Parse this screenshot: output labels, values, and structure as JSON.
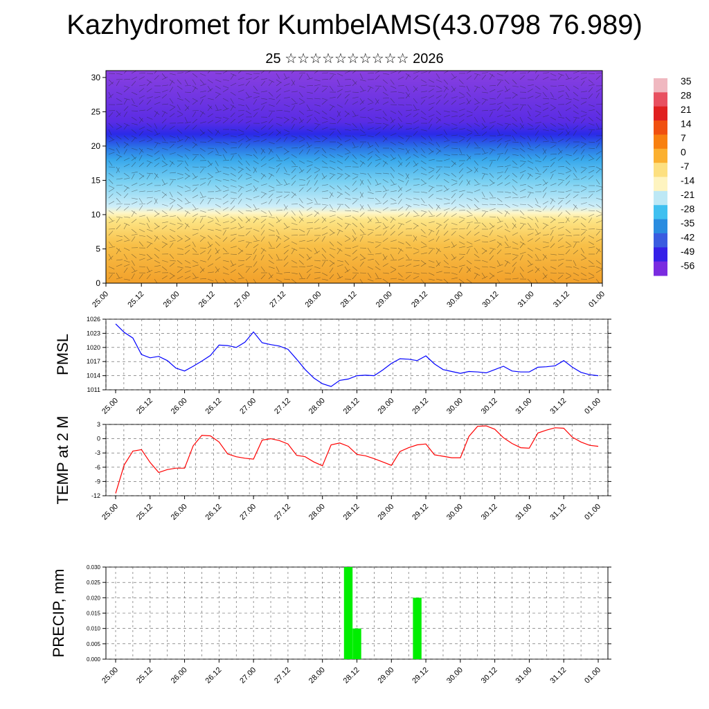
{
  "header": {
    "title": "Kazhydromet for KumbelAMS(43.0798 76.989)",
    "subtitle": "25 ☆☆☆☆☆☆☆☆☆☆ 2026"
  },
  "time_ticks": [
    "25.00",
    "25.12",
    "26.00",
    "26.12",
    "27.00",
    "27.12",
    "28.00",
    "28.12",
    "29.00",
    "29.12",
    "30.00",
    "30.12",
    "31.00",
    "31.12",
    "01.00"
  ],
  "colorbar": {
    "labels": [
      "35",
      "28",
      "21",
      "14",
      "7",
      "0",
      "-7",
      "-14",
      "-21",
      "-28",
      "-35",
      "-42",
      "-49",
      "-56"
    ],
    "colors": [
      "#f0b8c0",
      "#e85060",
      "#e02020",
      "#f05010",
      "#f88010",
      "#fbb030",
      "#fde080",
      "#fef4c0",
      "#bde8f5",
      "#40c0f0",
      "#2a8ce0",
      "#3a5ce0",
      "#3520e8",
      "#7a2be0"
    ]
  },
  "chart_data": [
    {
      "type": "heatmap",
      "title": "",
      "xlabel": "",
      "ylabel": "",
      "x": [
        "25.00",
        "25.12",
        "26.00",
        "26.12",
        "27.00",
        "27.12",
        "28.00",
        "28.12",
        "29.00",
        "29.12",
        "30.00",
        "30.12",
        "31.00",
        "31.12",
        "01.00"
      ],
      "ylim": [
        0,
        31
      ],
      "yticks": [
        "0",
        "5",
        "10",
        "15",
        "20",
        "25",
        "30"
      ],
      "description_bands": [
        {
          "from": 0,
          "to": 10,
          "value_range": [
            0,
            14
          ]
        },
        {
          "from": 10,
          "to": 21,
          "value_range": [
            -42,
            -14
          ]
        },
        {
          "from": 21,
          "to": 31,
          "value_range": [
            -56,
            -49
          ]
        }
      ]
    },
    {
      "type": "line",
      "ylabel": "PMSL",
      "ylim": [
        1011,
        1026
      ],
      "yticks": [
        "1011",
        "1014",
        "1017",
        "1020",
        "1023",
        "1026"
      ],
      "x_hours": [
        0,
        3,
        6,
        9,
        12,
        15,
        18,
        21,
        24,
        27,
        30,
        33,
        36,
        39,
        42,
        45,
        48,
        51,
        54,
        57,
        60,
        63,
        66,
        69,
        72,
        75,
        78,
        81,
        84,
        87,
        90,
        93,
        96,
        99,
        102,
        105,
        108,
        111,
        114,
        117,
        120,
        123,
        126,
        129,
        132,
        135,
        138,
        141,
        144,
        147,
        150,
        153,
        156,
        159,
        162,
        165,
        168
      ],
      "values": [
        1025,
        1023.2,
        1022,
        1018.5,
        1017.8,
        1018.1,
        1017.2,
        1015.6,
        1015,
        1016,
        1017.1,
        1018.3,
        1020.5,
        1020.4,
        1020,
        1021.1,
        1023.3,
        1021,
        1020.6,
        1020.3,
        1019.6,
        1017.5,
        1015.3,
        1013.5,
        1012.3,
        1011.7,
        1013,
        1013.3,
        1014,
        1014.1,
        1014,
        1015.2,
        1016.6,
        1017.6,
        1017.5,
        1017.2,
        1018.2,
        1016.5,
        1015.3,
        1014.9,
        1014.5,
        1014.9,
        1014.8,
        1014.6,
        1015.3,
        1016,
        1015,
        1014.8,
        1014.8,
        1015.8,
        1015.9,
        1016.1,
        1017.2,
        1015.8,
        1014.7,
        1014.2,
        1014
      ],
      "color": "#0000ff"
    },
    {
      "type": "line",
      "ylabel": "TEMP at 2 M",
      "ylim": [
        -12,
        3
      ],
      "yticks": [
        "-12",
        "-9",
        "-6",
        "-3",
        "0",
        "3"
      ],
      "x_hours": [
        0,
        3,
        6,
        9,
        12,
        15,
        18,
        21,
        24,
        27,
        30,
        33,
        36,
        39,
        42,
        45,
        48,
        51,
        54,
        57,
        60,
        63,
        66,
        69,
        72,
        75,
        78,
        81,
        84,
        87,
        90,
        93,
        96,
        99,
        102,
        105,
        108,
        111,
        114,
        117,
        120,
        123,
        126,
        129,
        132,
        135,
        138,
        141,
        144,
        147,
        150,
        153,
        156,
        159,
        162,
        165,
        168
      ],
      "values": [
        -11.5,
        -5.5,
        -2.6,
        -2.3,
        -5,
        -7.1,
        -6.5,
        -6.2,
        -6.2,
        -1.5,
        0.7,
        0.6,
        -0.7,
        -3.2,
        -3.8,
        -4.1,
        -4.3,
        -0.3,
        0,
        -0.4,
        -1.1,
        -3.5,
        -3.8,
        -4.9,
        -5.7,
        -1.3,
        -0.9,
        -1.6,
        -3.3,
        -3.6,
        -4.2,
        -4.9,
        -5.6,
        -2.7,
        -1.9,
        -1.3,
        -1.1,
        -3.4,
        -3.7,
        -4,
        -4,
        0.5,
        2.6,
        2.7,
        2,
        0.2,
        -1,
        -1.9,
        -2,
        1.2,
        1.8,
        2.3,
        2.2,
        0.3,
        -0.7,
        -1.4,
        -1.6
      ],
      "color": "#ff0000"
    },
    {
      "type": "bar",
      "ylabel": "PRECIP, mm",
      "ylim": [
        0,
        0.03
      ],
      "yticks": [
        "0.000",
        "0.005",
        "0.010",
        "0.015",
        "0.020",
        "0.025",
        "0.030"
      ],
      "bars": [
        {
          "x_hour": 81,
          "value": 0.03
        },
        {
          "x_hour": 84,
          "value": 0.01
        },
        {
          "x_hour": 105,
          "value": 0.02
        }
      ],
      "color": "#00ee00"
    }
  ]
}
